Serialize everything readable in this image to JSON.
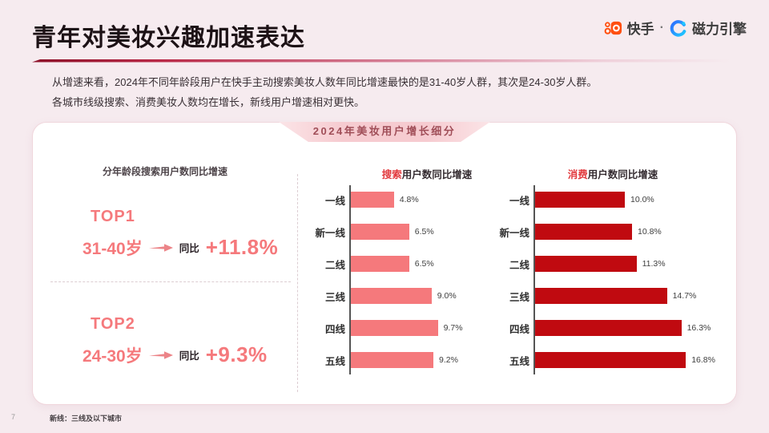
{
  "page": {
    "title": "青年对美妆兴趣加速表达",
    "intro_line1": "从增速来看，2024年不同年龄段用户在快手主动搜索美妆人数年同比增速最快的是31-40岁人群，其次是24-30岁人群。",
    "intro_line2": "各城市线级搜索、消费美妆人数均在增长，新线用户增速相对更快。",
    "page_number": "7",
    "footnote": "新线：三线及以下城市"
  },
  "brand": {
    "kuaishou": "快手",
    "separator": "·",
    "engine": "磁力引擎",
    "kuaishou_color": "#ff4f10",
    "engine_color_start": "#2e6bff",
    "engine_color_end": "#1fc9ff"
  },
  "card": {
    "ribbon_title": "2024年美妆用户增长细分"
  },
  "age_panel": {
    "title": "分年龄段搜索用户数同比增速",
    "items": [
      {
        "rank": "TOP1",
        "age": "31-40岁",
        "label": "同比",
        "value": "+11.8%"
      },
      {
        "rank": "TOP2",
        "age": "24-30岁",
        "label": "同比",
        "value": "+9.3%"
      }
    ]
  },
  "colors": {
    "search_bar": "#f5797c",
    "consume_bar": "#c00a10",
    "title_highlight": "#e23a3e",
    "page_background": "#f6ebef"
  },
  "chart_data": [
    {
      "type": "bar",
      "orientation": "horizontal",
      "title": "搜索用户数同比增速",
      "title_highlight": "搜索",
      "title_rest": "用户数同比增速",
      "categories": [
        "一线",
        "新一线",
        "二线",
        "三线",
        "四线",
        "五线"
      ],
      "values": [
        4.8,
        6.5,
        6.5,
        9.0,
        9.7,
        9.2
      ],
      "labels": [
        "4.8%",
        "6.5%",
        "6.5%",
        "9.0%",
        "9.7%",
        "9.2%"
      ],
      "bar_color": "#f5797c",
      "xlim": [
        0,
        20
      ],
      "grid": false,
      "legend": false
    },
    {
      "type": "bar",
      "orientation": "horizontal",
      "title": "消费用户数同比增速",
      "title_highlight": "消费",
      "title_rest": "用户数同比增速",
      "categories": [
        "一线",
        "新一线",
        "二线",
        "三线",
        "四线",
        "五线"
      ],
      "values": [
        10.0,
        10.8,
        11.3,
        14.7,
        16.3,
        16.8
      ],
      "labels": [
        "10.0%",
        "10.8%",
        "11.3%",
        "14.7%",
        "16.3%",
        "16.8%"
      ],
      "bar_color": "#c00a10",
      "xlim": [
        0,
        20
      ],
      "grid": false,
      "legend": false
    }
  ]
}
